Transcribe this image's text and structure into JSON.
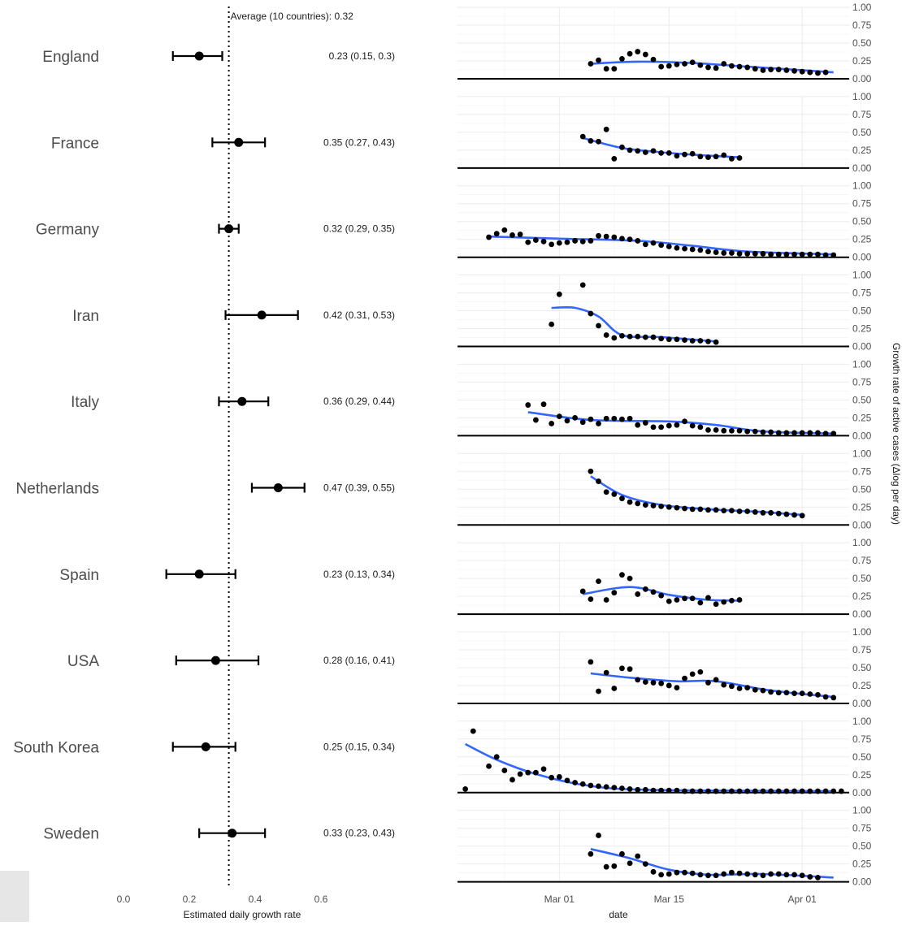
{
  "chart_data": [
    {
      "type": "forest",
      "xlabel": "Estimated daily growth rate",
      "xlim": [
        0.0,
        0.6
      ],
      "xticks": [
        "0.0",
        "0.2",
        "0.4",
        "0.6"
      ],
      "reference_line": {
        "value": 0.32,
        "label": "Average (10 countries): 0.32"
      },
      "rows": [
        {
          "country": "England",
          "estimate": 0.23,
          "lower": 0.15,
          "upper": 0.3,
          "label": "0.23 (0.15, 0.3)"
        },
        {
          "country": "France",
          "estimate": 0.35,
          "lower": 0.27,
          "upper": 0.43,
          "label": "0.35 (0.27, 0.43)"
        },
        {
          "country": "Germany",
          "estimate": 0.32,
          "lower": 0.29,
          "upper": 0.35,
          "label": "0.32 (0.29, 0.35)"
        },
        {
          "country": "Iran",
          "estimate": 0.42,
          "lower": 0.31,
          "upper": 0.53,
          "label": "0.42 (0.31, 0.53)"
        },
        {
          "country": "Italy",
          "estimate": 0.36,
          "lower": 0.29,
          "upper": 0.44,
          "label": "0.36 (0.29, 0.44)"
        },
        {
          "country": "Netherlands",
          "estimate": 0.47,
          "lower": 0.39,
          "upper": 0.55,
          "label": "0.47 (0.39, 0.55)"
        },
        {
          "country": "Spain",
          "estimate": 0.23,
          "lower": 0.13,
          "upper": 0.34,
          "label": "0.23 (0.13, 0.34)"
        },
        {
          "country": "USA",
          "estimate": 0.28,
          "lower": 0.16,
          "upper": 0.41,
          "label": "0.28 (0.16, 0.41)"
        },
        {
          "country": "South Korea",
          "estimate": 0.25,
          "lower": 0.15,
          "upper": 0.34,
          "label": "0.25 (0.15, 0.34)"
        },
        {
          "country": "Sweden",
          "estimate": 0.33,
          "lower": 0.23,
          "upper": 0.43,
          "label": "0.33 (0.23, 0.43)"
        }
      ]
    },
    {
      "type": "scatter",
      "xlabel": "date",
      "ylabel": "Growth rate of active cases (Δlog per day)",
      "x_tick_labels": [
        "Mar 01",
        "Mar 15",
        "Apr 01"
      ],
      "x_tick_dates": [
        "2020-03-01",
        "2020-03-15",
        "2020-04-01"
      ],
      "xlim": [
        "2020-02-17",
        "2020-04-07"
      ],
      "ylim": [
        0,
        1
      ],
      "y_tick_labels": [
        "0.00",
        "0.25",
        "0.50",
        "0.75",
        "1.00"
      ],
      "facets_by": [
        "England",
        "France",
        "Germany",
        "Iran",
        "Italy",
        "Netherlands",
        "Spain",
        "USA",
        "South Korea",
        "Sweden"
      ],
      "smooth_color": "#3366ff",
      "point_color": "#000000",
      "panels": [
        {
          "country": "England",
          "start": "2020-03-05",
          "values": [
            0.21,
            0.26,
            0.14,
            0.14,
            0.28,
            0.35,
            0.38,
            0.34,
            0.27,
            0.17,
            0.18,
            0.2,
            0.21,
            0.23,
            0.19,
            0.16,
            0.15,
            0.21,
            0.18,
            0.17,
            0.16,
            0.14,
            0.12,
            0.13,
            0.13,
            0.12,
            0.11,
            0.1,
            0.09,
            0.08,
            0.09
          ],
          "smooth": [
            [
              "2020-03-05",
              0.21
            ],
            [
              "2020-03-11",
              0.24
            ],
            [
              "2020-03-18",
              0.22
            ],
            [
              "2020-03-25",
              0.17
            ],
            [
              "2020-04-01",
              0.12
            ],
            [
              "2020-04-05",
              0.09
            ]
          ]
        },
        {
          "country": "France",
          "start": "2020-03-04",
          "values": [
            0.44,
            0.38,
            0.37,
            0.54,
            0.13,
            0.29,
            0.25,
            0.24,
            0.22,
            0.24,
            0.21,
            0.21,
            0.17,
            0.19,
            0.2,
            0.16,
            0.15,
            0.16,
            0.18,
            0.13,
            0.14
          ],
          "smooth": [
            [
              "2020-03-04",
              0.42
            ],
            [
              "2020-03-09",
              0.28
            ],
            [
              "2020-03-14",
              0.22
            ],
            [
              "2020-03-19",
              0.18
            ],
            [
              "2020-03-24",
              0.15
            ]
          ]
        },
        {
          "country": "Germany",
          "start": "2020-02-21",
          "values": [
            0.28,
            0.33,
            0.38,
            0.31,
            0.32,
            0.21,
            0.24,
            0.22,
            0.18,
            0.2,
            0.21,
            0.23,
            0.22,
            0.23,
            0.3,
            0.29,
            0.28,
            0.26,
            0.25,
            0.23,
            0.18,
            0.2,
            0.17,
            0.15,
            0.13,
            0.12,
            0.11,
            0.1,
            0.08,
            0.07,
            0.06,
            0.06,
            0.05,
            0.05,
            0.05,
            0.05,
            0.04,
            0.04,
            0.04,
            0.04,
            0.04,
            0.04,
            0.04,
            0.03,
            0.03
          ],
          "smooth": [
            [
              "2020-02-21",
              0.29
            ],
            [
              "2020-03-01",
              0.26
            ],
            [
              "2020-03-11",
              0.23
            ],
            [
              "2020-03-18",
              0.16
            ],
            [
              "2020-03-25",
              0.08
            ],
            [
              "2020-04-05",
              0.04
            ]
          ]
        },
        {
          "country": "Iran",
          "start": "2020-02-29",
          "values": [
            0.31,
            0.73,
            null,
            null,
            0.86,
            0.46,
            0.29,
            0.16,
            0.12,
            0.15,
            0.14,
            0.14,
            0.13,
            0.13,
            0.11,
            0.1,
            0.1,
            0.09,
            0.08,
            0.08,
            0.07,
            0.06
          ],
          "smooth": [
            [
              "2020-02-29",
              0.54
            ],
            [
              "2020-03-03",
              0.54
            ],
            [
              "2020-03-06",
              0.42
            ],
            [
              "2020-03-09",
              0.16
            ],
            [
              "2020-03-14",
              0.13
            ],
            [
              "2020-03-21",
              0.07
            ]
          ]
        },
        {
          "country": "Italy",
          "start": "2020-02-26",
          "values": [
            0.43,
            0.22,
            0.44,
            0.17,
            0.27,
            0.21,
            0.25,
            0.19,
            0.23,
            0.17,
            0.24,
            0.24,
            0.23,
            0.24,
            0.15,
            0.18,
            0.12,
            0.12,
            0.14,
            0.15,
            0.2,
            0.14,
            0.12,
            0.08,
            0.08,
            0.07,
            0.07,
            0.07,
            0.06,
            0.06,
            0.05,
            0.05,
            0.04,
            0.04,
            0.04,
            0.04,
            0.04,
            0.04,
            0.03,
            0.03
          ],
          "smooth": [
            [
              "2020-02-26",
              0.33
            ],
            [
              "2020-03-05",
              0.22
            ],
            [
              "2020-03-15",
              0.2
            ],
            [
              "2020-03-21",
              0.15
            ],
            [
              "2020-03-27",
              0.06
            ],
            [
              "2020-04-05",
              0.03
            ]
          ]
        },
        {
          "country": "Netherlands",
          "start": "2020-03-05",
          "values": [
            0.75,
            0.61,
            0.46,
            0.43,
            0.37,
            0.32,
            0.3,
            0.28,
            0.27,
            0.26,
            0.25,
            0.24,
            0.23,
            0.22,
            0.22,
            0.21,
            0.21,
            0.2,
            0.2,
            0.19,
            0.19,
            0.18,
            0.17,
            0.17,
            0.16,
            0.15,
            0.14,
            0.13
          ],
          "smooth": [
            [
              "2020-03-05",
              0.68
            ],
            [
              "2020-03-09",
              0.42
            ],
            [
              "2020-03-14",
              0.28
            ],
            [
              "2020-03-20",
              0.22
            ],
            [
              "2020-03-27",
              0.18
            ],
            [
              "2020-04-01",
              0.14
            ]
          ]
        },
        {
          "country": "Spain",
          "start": "2020-03-04",
          "values": [
            0.32,
            0.21,
            0.46,
            0.2,
            0.3,
            0.55,
            0.5,
            0.28,
            0.35,
            0.31,
            0.26,
            0.18,
            0.2,
            0.22,
            0.22,
            0.16,
            0.23,
            0.14,
            0.17,
            0.19,
            0.2
          ],
          "smooth": [
            [
              "2020-03-04",
              0.28
            ],
            [
              "2020-03-10",
              0.38
            ],
            [
              "2020-03-15",
              0.27
            ],
            [
              "2020-03-20",
              0.2
            ],
            [
              "2020-03-24",
              0.19
            ]
          ]
        },
        {
          "country": "USA",
          "start": "2020-03-05",
          "values": [
            0.58,
            0.17,
            0.43,
            0.21,
            0.49,
            0.48,
            0.33,
            0.3,
            0.29,
            0.28,
            0.25,
            0.22,
            0.35,
            0.41,
            0.44,
            0.29,
            0.33,
            0.26,
            0.24,
            0.21,
            0.22,
            0.19,
            0.18,
            0.16,
            0.15,
            0.15,
            0.14,
            0.14,
            0.13,
            0.12,
            0.09,
            0.08
          ],
          "smooth": [
            [
              "2020-03-05",
              0.42
            ],
            [
              "2020-03-10",
              0.36
            ],
            [
              "2020-03-16",
              0.31
            ],
            [
              "2020-03-21",
              0.31
            ],
            [
              "2020-03-28",
              0.18
            ],
            [
              "2020-04-05",
              0.09
            ]
          ]
        },
        {
          "country": "South Korea",
          "start": "2020-02-18",
          "values": [
            0.05,
            0.86,
            null,
            0.37,
            0.5,
            0.31,
            0.18,
            0.26,
            0.28,
            0.28,
            0.33,
            0.21,
            0.22,
            0.17,
            0.14,
            0.12,
            0.1,
            0.09,
            0.08,
            0.07,
            0.06,
            0.05,
            0.04,
            0.04,
            0.03,
            0.03,
            0.03,
            0.03,
            0.02,
            0.02,
            0.02,
            0.02,
            0.02,
            0.02,
            0.02,
            0.02,
            0.02,
            0.02,
            0.02,
            0.02,
            0.02,
            0.02,
            0.02,
            0.02,
            0.02,
            0.02,
            0.02,
            0.02,
            0.02
          ],
          "smooth": [
            [
              "2020-02-18",
              0.68
            ],
            [
              "2020-02-22",
              0.46
            ],
            [
              "2020-02-27",
              0.26
            ],
            [
              "2020-03-04",
              0.11
            ],
            [
              "2020-03-12",
              0.04
            ],
            [
              "2020-04-05",
              0.02
            ]
          ]
        },
        {
          "country": "Sweden",
          "start": "2020-03-05",
          "values": [
            0.39,
            0.65,
            0.21,
            0.22,
            0.39,
            0.26,
            0.36,
            0.25,
            0.14,
            0.1,
            0.11,
            0.13,
            0.13,
            0.12,
            0.1,
            0.09,
            0.09,
            0.11,
            0.13,
            0.12,
            0.11,
            0.1,
            0.09,
            0.11,
            0.11,
            0.1,
            0.1,
            0.09,
            0.07,
            0.06
          ],
          "smooth": [
            [
              "2020-03-05",
              0.46
            ],
            [
              "2020-03-10",
              0.33
            ],
            [
              "2020-03-15",
              0.17
            ],
            [
              "2020-03-20",
              0.1
            ],
            [
              "2020-03-27",
              0.11
            ],
            [
              "2020-04-05",
              0.06
            ]
          ]
        }
      ]
    }
  ]
}
